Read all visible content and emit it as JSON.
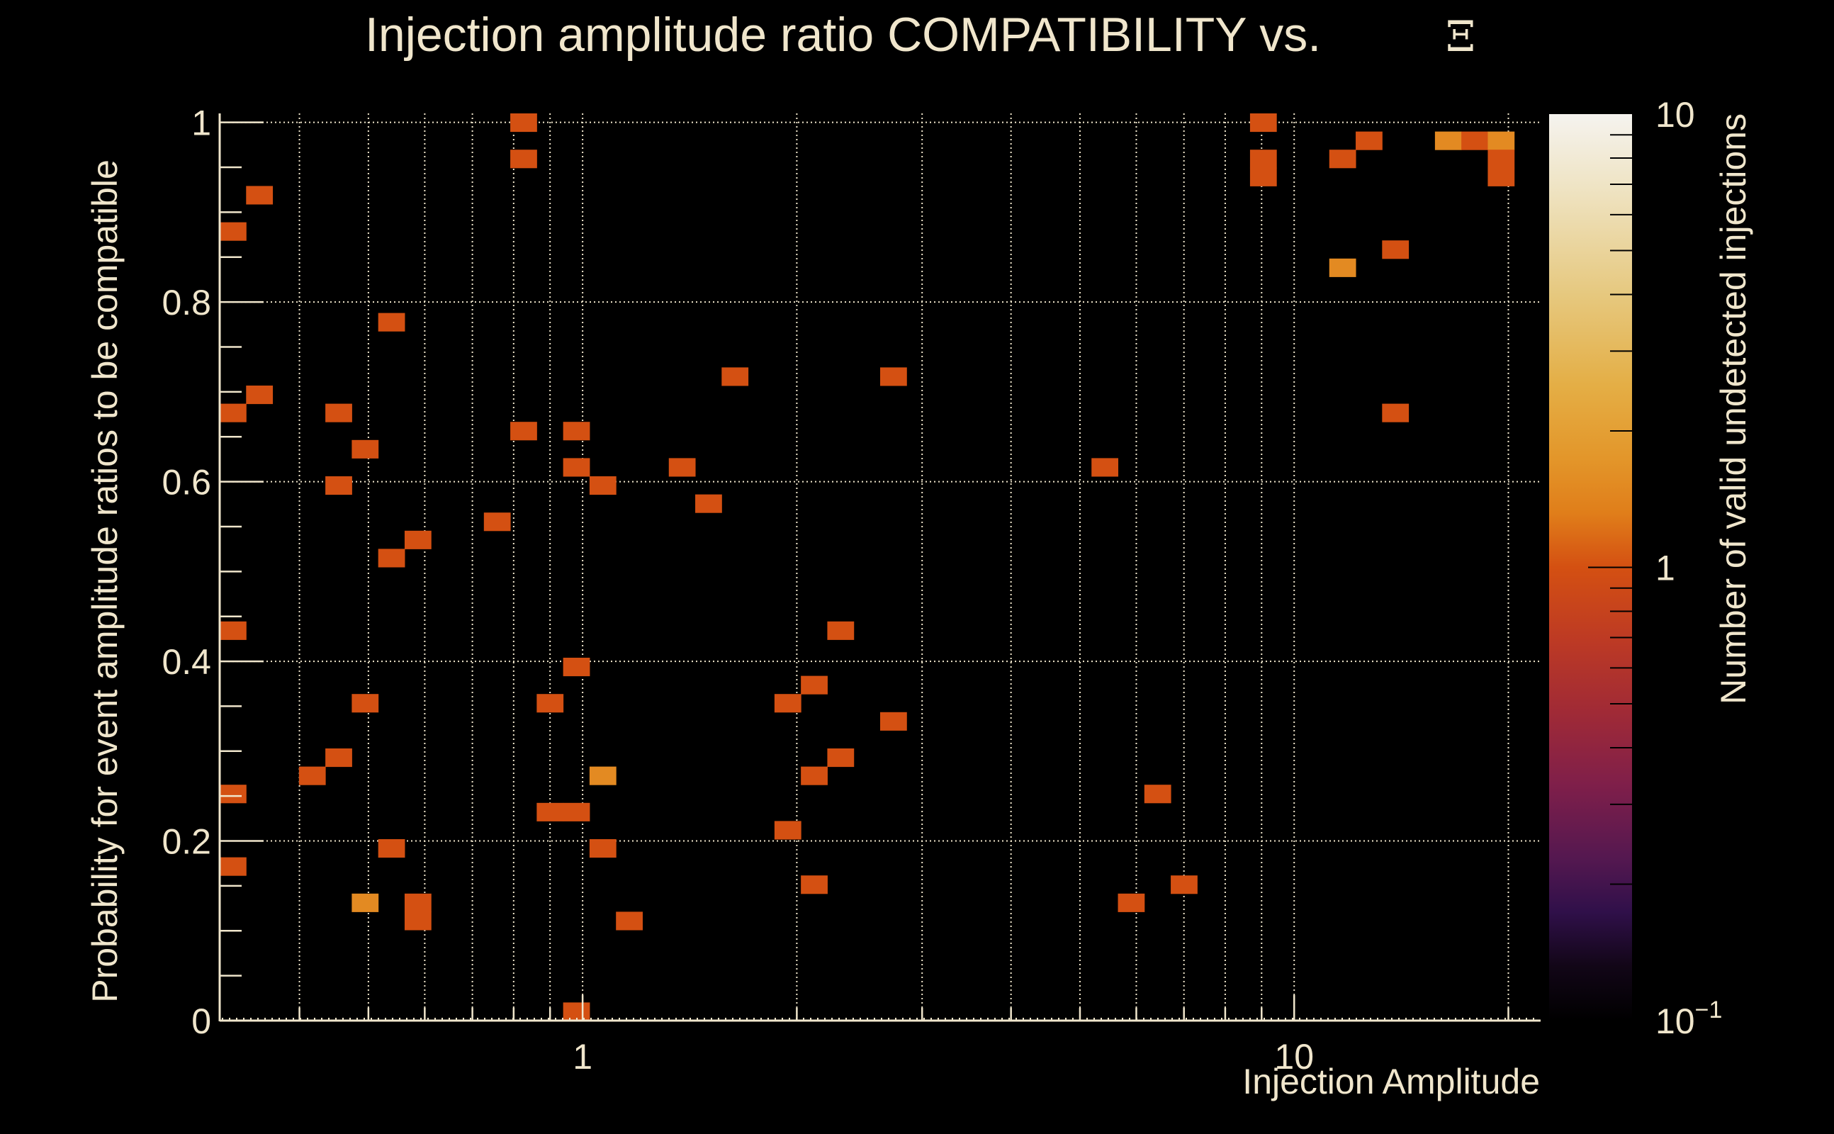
{
  "chart_data": {
    "type": "heatmap",
    "title": "Injection amplitude ratio COMPATIBILITY vs.",
    "title_symbol": "Ξ",
    "xlabel": "Injection Amplitude",
    "ylabel": "Probability for event amplitude ratios to be compatible",
    "colorbar_label": "Number of valid undetected injections",
    "x_scale": "log",
    "xlim": [
      0.309,
      22.2
    ],
    "ylim": [
      0,
      1.01
    ],
    "x_bins": 50,
    "y_bins": 50,
    "z_scale": "log",
    "zlim": [
      0.1,
      10
    ],
    "grid": true,
    "x_ticks": [
      {
        "value": 1,
        "label": "1"
      },
      {
        "value": 10,
        "label": "10"
      }
    ],
    "x_minor_gridlines": [
      0.4,
      0.5,
      0.6,
      0.7,
      0.8,
      0.9,
      2,
      3,
      4,
      5,
      6,
      7,
      8,
      9,
      20
    ],
    "y_ticks": [
      {
        "value": 0,
        "label": "0"
      },
      {
        "value": 0.2,
        "label": "0.2"
      },
      {
        "value": 0.4,
        "label": "0.4"
      },
      {
        "value": 0.6,
        "label": "0.6"
      },
      {
        "value": 0.8,
        "label": "0.8"
      },
      {
        "value": 1,
        "label": "1"
      }
    ],
    "z_ticks": [
      {
        "value": 0.1,
        "label": "10",
        "sup": "−1"
      },
      {
        "value": 1,
        "label": "1",
        "sup": ""
      },
      {
        "value": 10,
        "label": "10",
        "sup": ""
      }
    ],
    "colors": {
      "background": "#000000",
      "text": "#F0E6CC",
      "count_1": "#D45012",
      "count_2": "#E38A22"
    },
    "cells_note": "each cell: [x_bin_index, y_bin_index_from_bottom, count]",
    "cells": [
      [
        0,
        43,
        1
      ],
      [
        1,
        45,
        1
      ],
      [
        0,
        33,
        1
      ],
      [
        1,
        34,
        1
      ],
      [
        0,
        21,
        1
      ],
      [
        0,
        12,
        1
      ],
      [
        0,
        8,
        1
      ],
      [
        6,
        38,
        1
      ],
      [
        4,
        33,
        1
      ],
      [
        5,
        31,
        1
      ],
      [
        4,
        29,
        1
      ],
      [
        7,
        26,
        1
      ],
      [
        6,
        25,
        1
      ],
      [
        5,
        17,
        1
      ],
      [
        4,
        14,
        1
      ],
      [
        3,
        13,
        1
      ],
      [
        6,
        9,
        1
      ],
      [
        5,
        6,
        2
      ],
      [
        7,
        6,
        1
      ],
      [
        7,
        5,
        1
      ],
      [
        11,
        49,
        1
      ],
      [
        11,
        47,
        1
      ],
      [
        11,
        32,
        1
      ],
      [
        10,
        27,
        1
      ],
      [
        12,
        17,
        1
      ],
      [
        12,
        11,
        1
      ],
      [
        13,
        11,
        1
      ],
      [
        13,
        32,
        1
      ],
      [
        13,
        30,
        1
      ],
      [
        14,
        29,
        1
      ],
      [
        13,
        19,
        1
      ],
      [
        14,
        13,
        2
      ],
      [
        14,
        9,
        1
      ],
      [
        15,
        5,
        1
      ],
      [
        13,
        0,
        1
      ],
      [
        17,
        30,
        1
      ],
      [
        18,
        28,
        1
      ],
      [
        19,
        35,
        1
      ],
      [
        21,
        17,
        1
      ],
      [
        22,
        18,
        1
      ],
      [
        23,
        21,
        1
      ],
      [
        22,
        13,
        1
      ],
      [
        23,
        14,
        1
      ],
      [
        21,
        10,
        1
      ],
      [
        22,
        7,
        1
      ],
      [
        25,
        35,
        1
      ],
      [
        25,
        16,
        1
      ],
      [
        33,
        30,
        1
      ],
      [
        35,
        12,
        1
      ],
      [
        34,
        6,
        1
      ],
      [
        36,
        7,
        1
      ],
      [
        39,
        49,
        1
      ],
      [
        39,
        47,
        1
      ],
      [
        39,
        46,
        1
      ],
      [
        42,
        47,
        1
      ],
      [
        43,
        48,
        1
      ],
      [
        42,
        41,
        2
      ],
      [
        44,
        42,
        1
      ],
      [
        44,
        33,
        1
      ],
      [
        46,
        48,
        2
      ],
      [
        47,
        48,
        1
      ],
      [
        48,
        48,
        2
      ],
      [
        48,
        47,
        1
      ],
      [
        48,
        46,
        1
      ]
    ]
  }
}
